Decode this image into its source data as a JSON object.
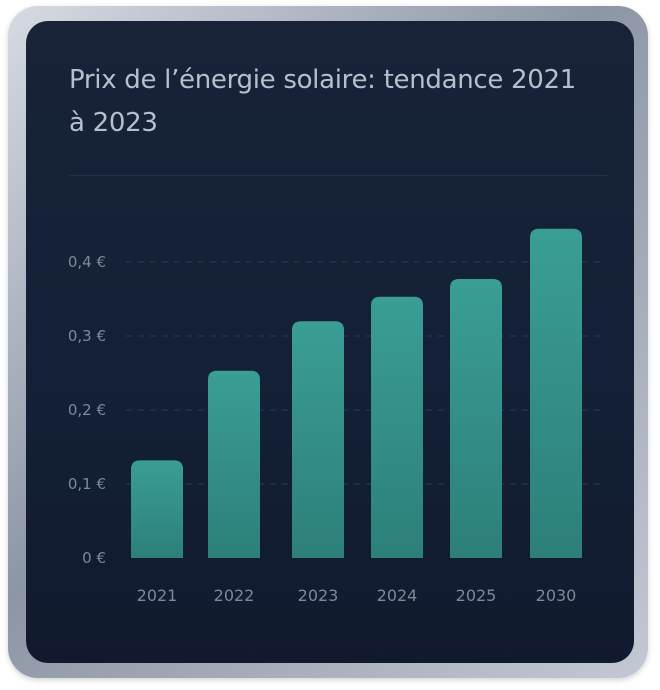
{
  "chart_data": {
    "type": "bar",
    "title": "Prix de l’énergie solaire: tendance 2021 à 2023",
    "categories": [
      "2021",
      "2022",
      "2023",
      "2024",
      "2025",
      "2030"
    ],
    "values": [
      0.132,
      0.253,
      0.32,
      0.353,
      0.377,
      0.445
    ],
    "ylim": [
      0,
      0.45
    ],
    "yticks": [
      0,
      0.1,
      0.2,
      0.3,
      0.4
    ],
    "ytick_labels": [
      "0 €",
      "0,1 €",
      "0,2 €",
      "0,3 €",
      "0,4 €"
    ],
    "grid": true,
    "bar_color_top": "#3a9e95",
    "bar_color_bottom": "#2d7f7a",
    "grid_color": "#2b3a52"
  }
}
